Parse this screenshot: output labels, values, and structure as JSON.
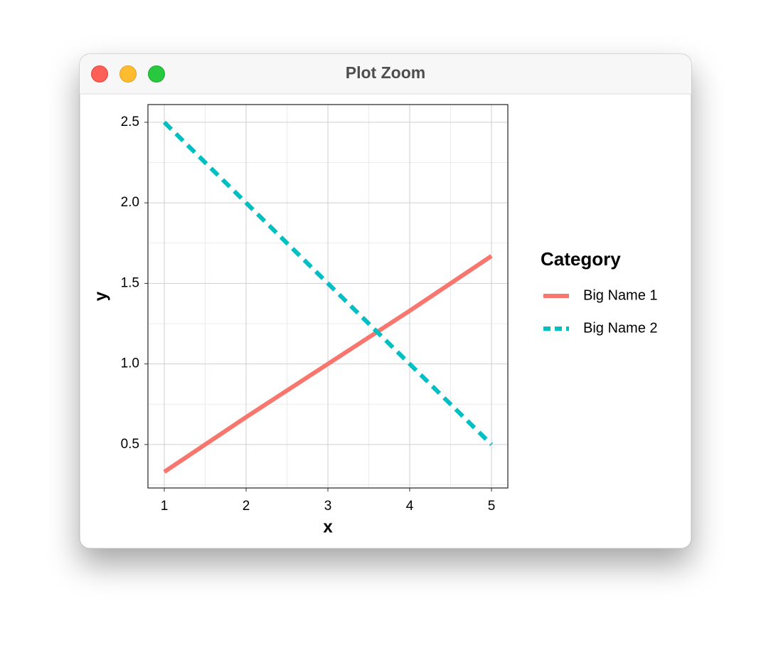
{
  "window": {
    "title": "Plot Zoom"
  },
  "chart_data": {
    "type": "line",
    "x_label": "x",
    "y_label": "y",
    "x": [
      1,
      2,
      3,
      4,
      5
    ],
    "series": [
      {
        "name": "Big Name 1",
        "color": "#F8766D",
        "linetype": "solid",
        "values": [
          0.33,
          0.67,
          1.0,
          1.33,
          1.67
        ]
      },
      {
        "name": "Big Name 2",
        "color": "#00BFC4",
        "linetype": "dashed",
        "values": [
          2.5,
          2.0,
          1.5,
          1.0,
          0.5
        ]
      }
    ],
    "xlim": [
      0.8,
      5.2
    ],
    "ylim": [
      0.23,
      2.61
    ],
    "xticks": [
      1,
      2,
      3,
      4,
      5
    ],
    "yticks": [
      0.5,
      {
        "value": 1.0,
        "label": "1.0"
      },
      1.5,
      {
        "value": 2.0,
        "label": "2.0"
      },
      2.5
    ],
    "grid": true,
    "minor_grid": true,
    "legend_title": "Category",
    "legend": "right"
  }
}
